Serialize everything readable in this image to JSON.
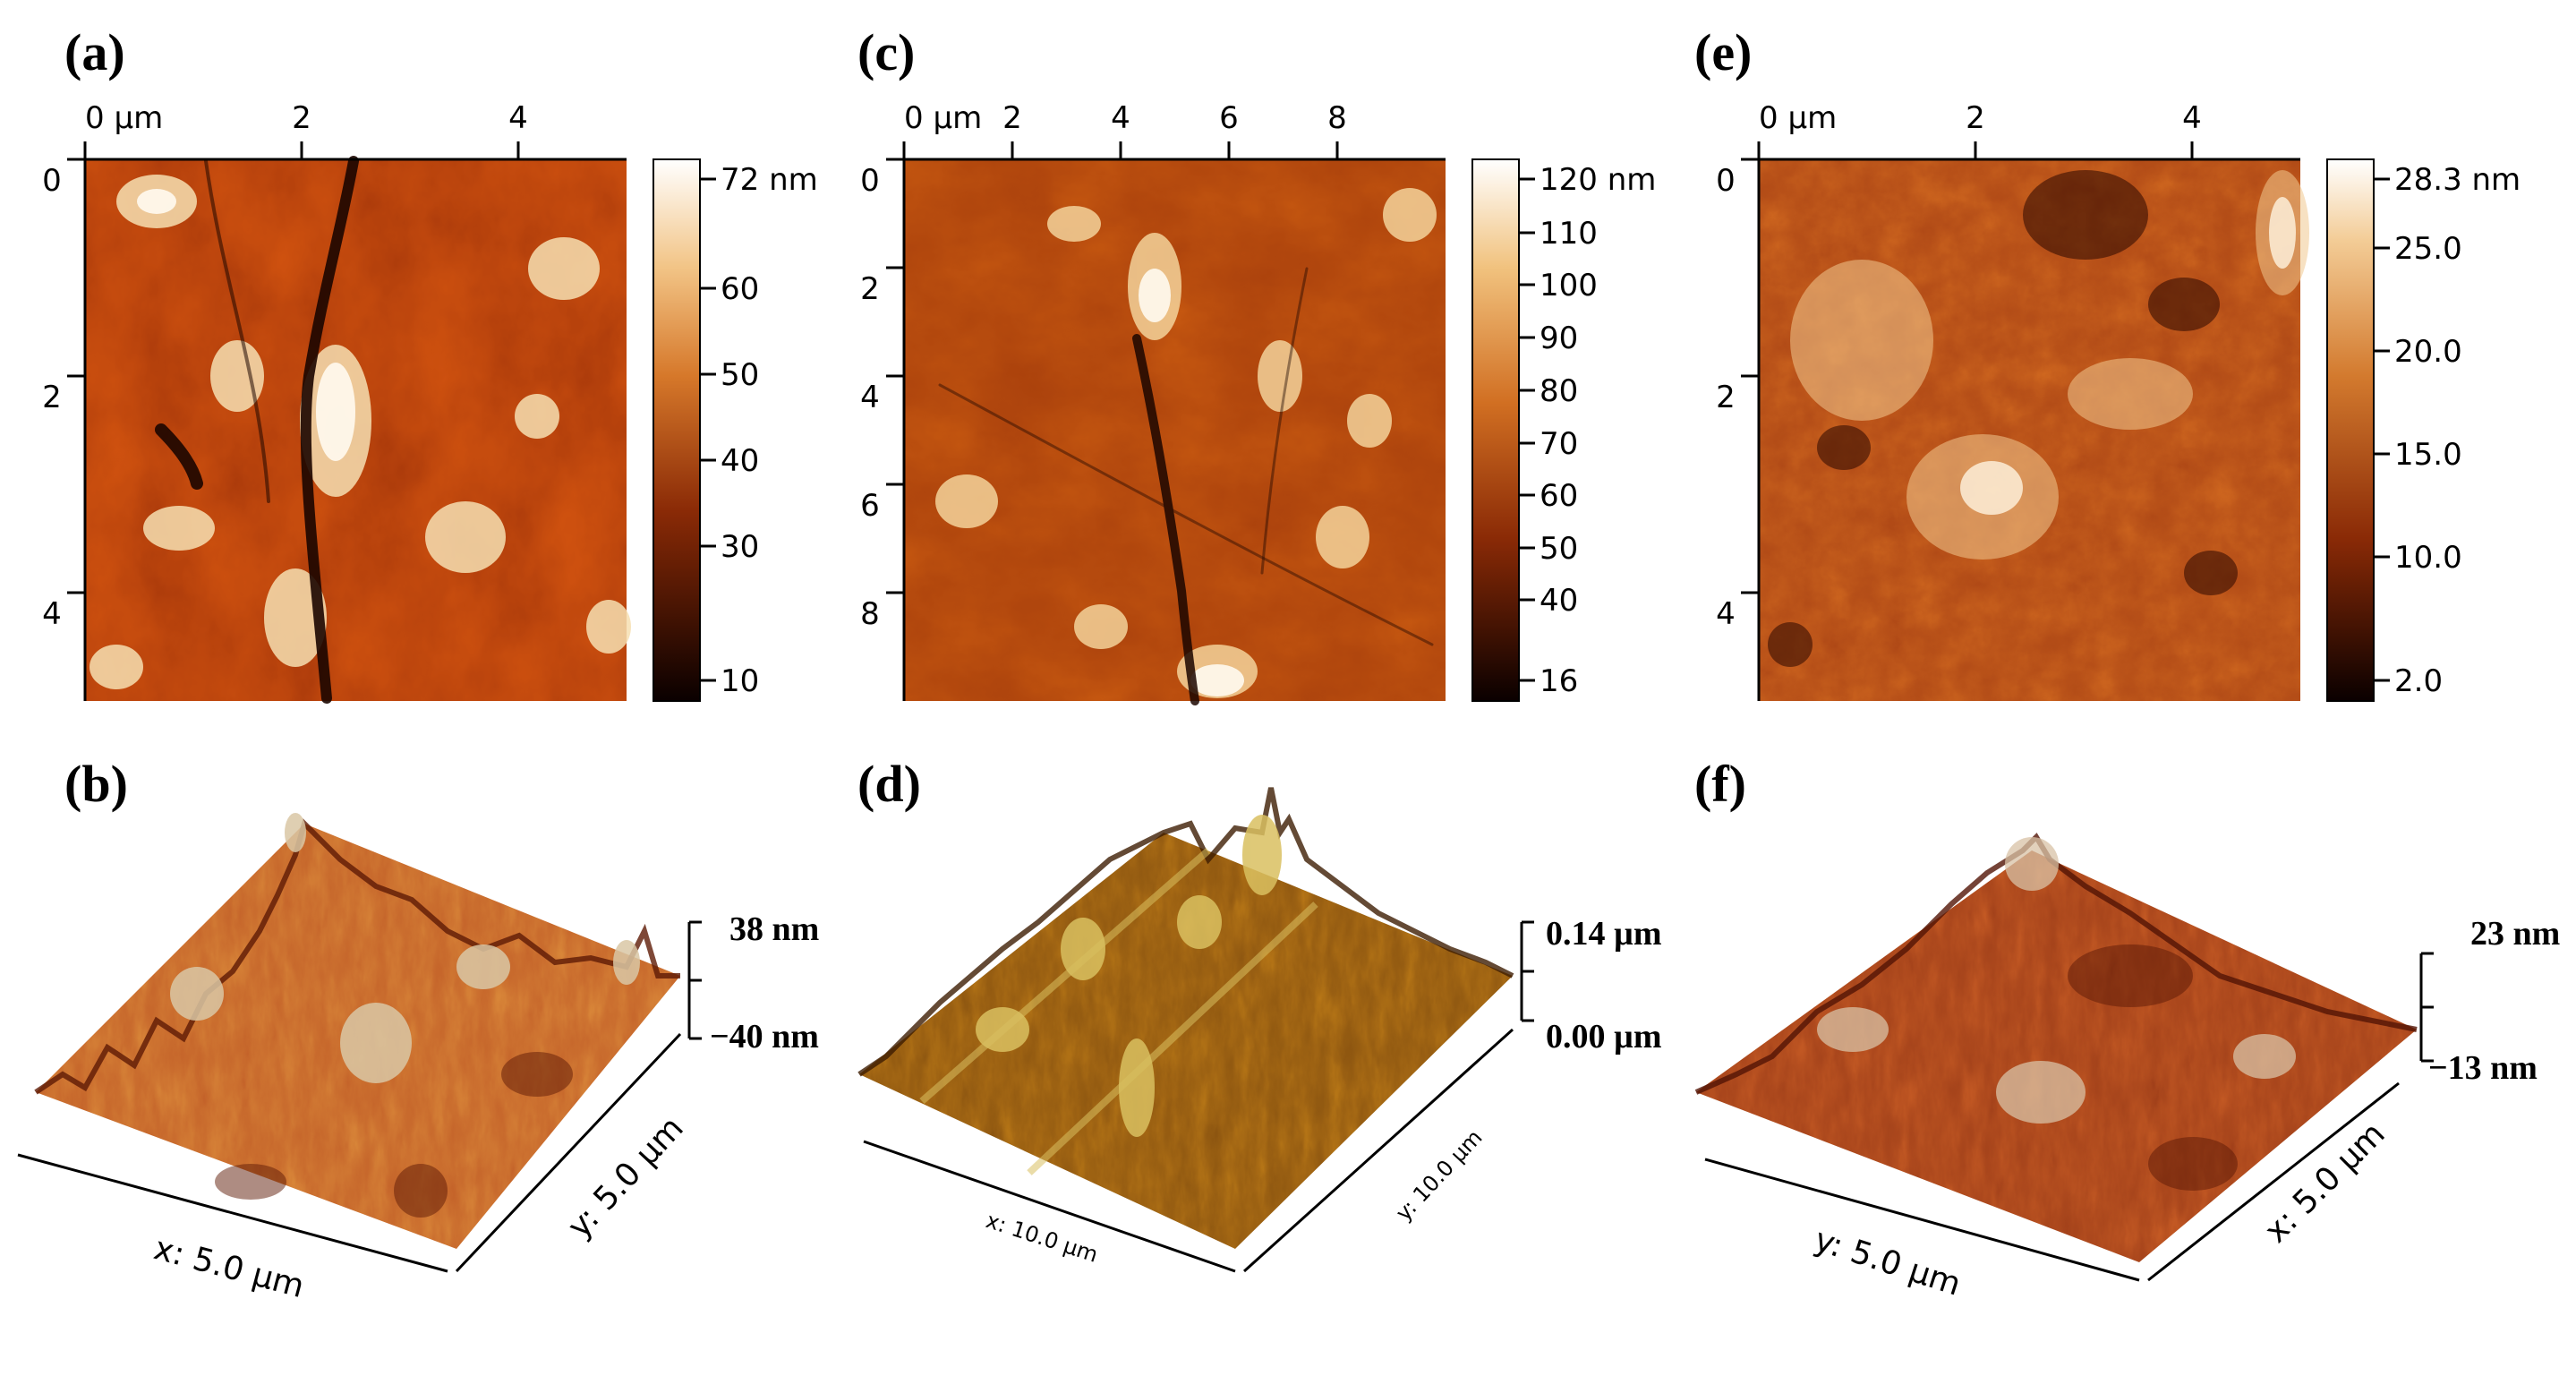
{
  "panels": [
    {
      "label": "(a)",
      "top_ticks": [
        "0 µm",
        "2",
        "4"
      ],
      "left_ticks": [
        "0",
        "2",
        "4"
      ],
      "scale_labels": [
        "72 nm",
        "60",
        "50",
        "40",
        "30",
        "10"
      ],
      "colors": {
        "dark": "#160400",
        "mid": "#a8380a",
        "light": "#ffffff"
      }
    },
    {
      "label": "(c)",
      "top_ticks": [
        "0 µm",
        "2",
        "4",
        "6",
        "8"
      ],
      "left_ticks": [
        "0",
        "2",
        "4",
        "6",
        "8"
      ],
      "scale_labels": [
        "120 nm",
        "110",
        "100",
        "90",
        "80",
        "70",
        "60",
        "50",
        "40",
        "16"
      ],
      "colors": {
        "dark": "#160400",
        "mid": "#ad430c",
        "light": "#fff2dc"
      }
    },
    {
      "label": "(e)",
      "top_ticks": [
        "0 µm",
        "2",
        "4"
      ],
      "left_ticks": [
        "0",
        "2",
        "4"
      ],
      "scale_labels": [
        "28.3 nm",
        "25.0",
        "20.0",
        "15.0",
        "10.0",
        "2.0"
      ],
      "colors": {
        "dark": "#1a0500",
        "mid": "#b14a16",
        "light": "#ffffff"
      }
    }
  ],
  "surfaces": [
    {
      "label": "(b)",
      "z_top": "38 nm",
      "z_bottom": "−40 nm",
      "x_label": "x: 5.0 µm",
      "y_label": "y: 5.0 µm",
      "colors": {
        "dark": "#5e1a05",
        "mid": "#c5642a",
        "light": "#d9c7a4"
      }
    },
    {
      "label": "(d)",
      "z_top": "0.14 µm",
      "z_bottom": "0.00 µm",
      "x_label": "x: 10.0 µm",
      "y_label": "y: 10.0 µm",
      "colors": {
        "dark": "#3d1d03",
        "mid": "#8f5710",
        "light": "#d9c060"
      }
    },
    {
      "label": "(f)",
      "z_top": "23 nm",
      "z_bottom": "−13 nm",
      "x_label": "x: 5.0 µm",
      "y_label": "y: 5.0 µm",
      "colors": {
        "dark": "#521405",
        "mid": "#a4421a",
        "light": "#d8c2a5"
      }
    }
  ]
}
